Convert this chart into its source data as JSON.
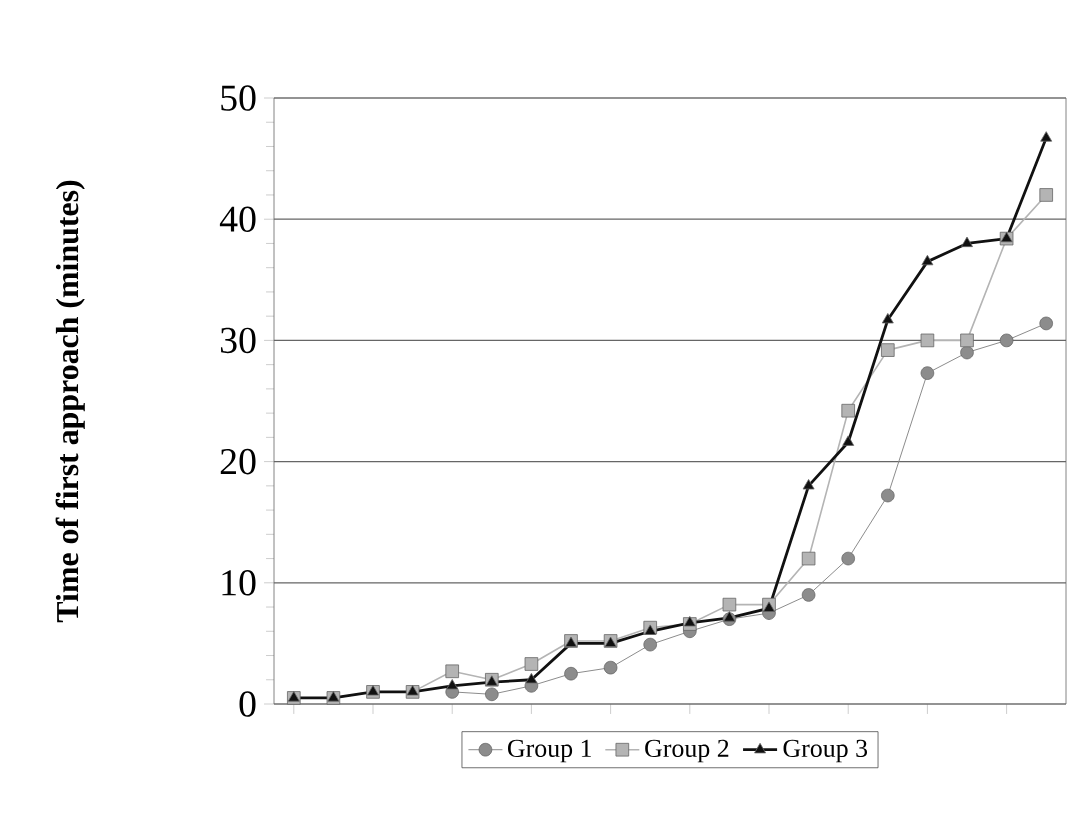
{
  "chart_data": {
    "type": "line",
    "ylabel": "Time of first approach (minutes)",
    "categories": [
      null,
      null,
      null,
      null,
      null,
      null,
      null,
      null,
      null,
      null,
      null,
      null,
      null,
      null,
      null,
      null,
      null,
      null,
      null,
      null
    ],
    "series": [
      {
        "name": "Group 1",
        "color": "#8c8c8c",
        "marker": "circle",
        "values": [
          null,
          null,
          null,
          null,
          1,
          0.8,
          1.5,
          2.5,
          3,
          4.9,
          6,
          7,
          7.5,
          9,
          12,
          17.2,
          27.3,
          29,
          30,
          31.4
        ]
      },
      {
        "name": "Group 2",
        "color": "#b4b4b4",
        "marker": "square",
        "values": [
          0.5,
          0.5,
          1,
          1,
          2.7,
          2,
          3.3,
          5.2,
          5.2,
          6.3,
          6.6,
          8.2,
          8.2,
          12,
          24.2,
          29.2,
          30,
          30,
          38.4,
          42
        ]
      },
      {
        "name": "Group 3",
        "color": "#111111",
        "marker": "triangle",
        "values": [
          0.5,
          0.5,
          1,
          1,
          1.5,
          1.8,
          2,
          5,
          5,
          6,
          6.7,
          7.1,
          7.9,
          18,
          21.6,
          31.7,
          36.5,
          38,
          38.4,
          46.7
        ]
      }
    ],
    "ylim": [
      0,
      50
    ],
    "yticks": [
      0,
      10,
      20,
      30,
      40,
      50
    ],
    "grid": "y",
    "legend": "bottom"
  }
}
